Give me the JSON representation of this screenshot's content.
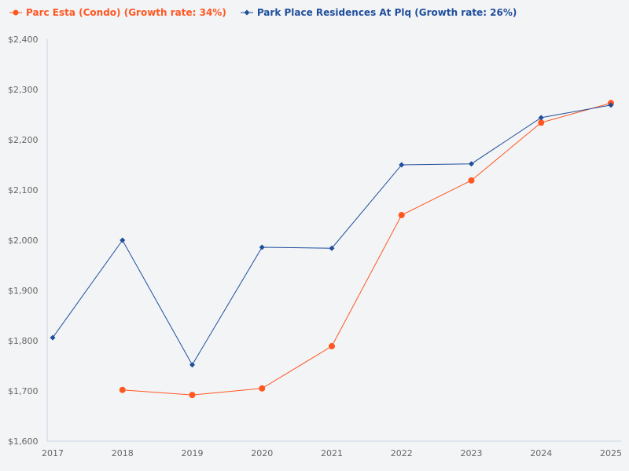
{
  "chart_data": {
    "type": "line",
    "categories": [
      "2017",
      "2018",
      "2019",
      "2020",
      "2021",
      "2022",
      "2023",
      "2024",
      "2025"
    ],
    "ylim": [
      1600,
      2400
    ],
    "yticks": [
      1600,
      1700,
      1800,
      1900,
      2000,
      2100,
      2200,
      2300,
      2400
    ],
    "ytick_labels": [
      "$1,600",
      "$1,700",
      "$1,800",
      "$1,900",
      "$2,000",
      "$2,100",
      "$2,200",
      "$2,300",
      "$2,400"
    ],
    "grid": false,
    "legend_position": "top-left",
    "series": [
      {
        "name": "Parc Esta (Condo) (Growth rate: 34%)",
        "color": "#ff5722",
        "marker": "circle",
        "values": [
          null,
          1702,
          1692,
          1705,
          1789,
          2050,
          2119,
          2234,
          2273
        ]
      },
      {
        "name": "Park Place Residences At Plq (Growth rate: 26%)",
        "color": "#1f4e9c",
        "marker": "diamond",
        "values": [
          1806,
          2000,
          1752,
          1986,
          1984,
          2150,
          2152,
          2244,
          2269
        ]
      }
    ]
  }
}
